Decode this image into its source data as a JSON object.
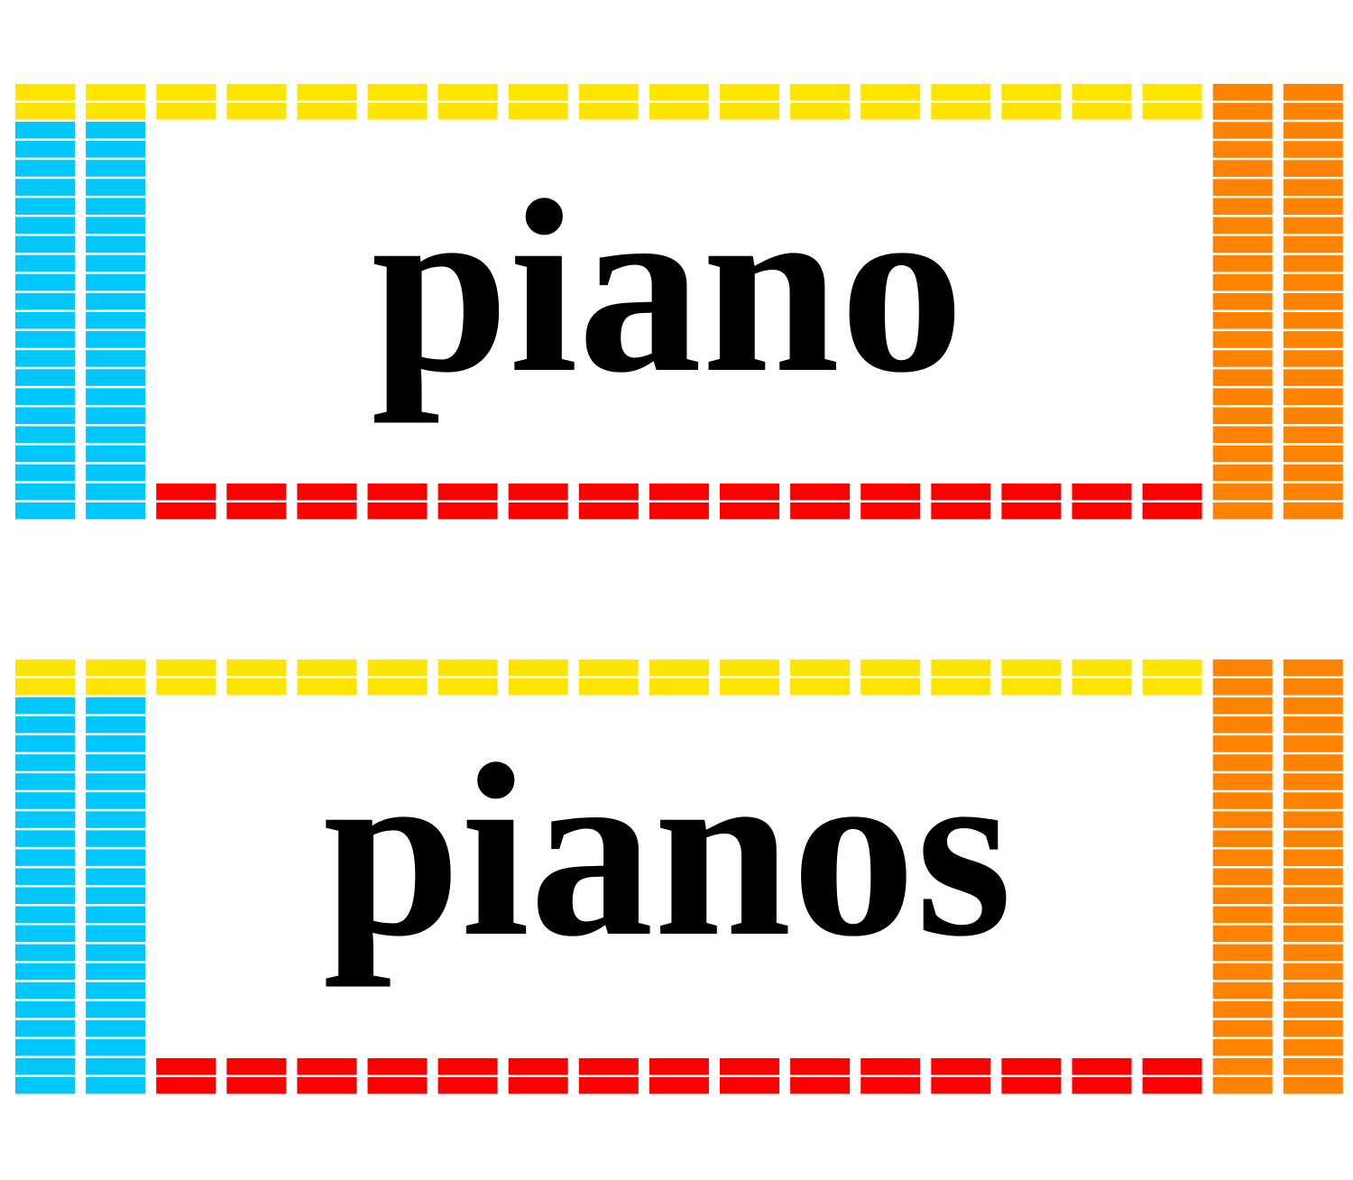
{
  "cards": [
    {
      "word": "piano"
    },
    {
      "word": "pianos"
    }
  ]
}
